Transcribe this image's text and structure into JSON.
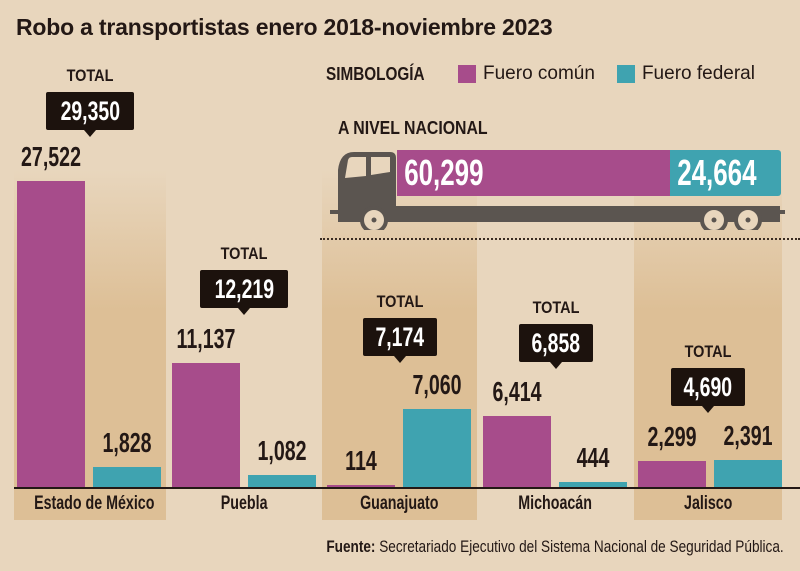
{
  "chart_data": {
    "type": "bar",
    "title": "Robo a transportistas enero 2018-noviembre 2023",
    "categories": [
      "Estado de México",
      "Puebla",
      "Guanajuato",
      "Michoacán",
      "Jalisco"
    ],
    "series": [
      {
        "name": "Fuero común",
        "color": "#a74c8b",
        "values": [
          27522,
          11137,
          114,
          6414,
          2299
        ],
        "labels": [
          "27,522",
          "11,137",
          "114",
          "6,414",
          "2,299"
        ]
      },
      {
        "name": "Fuero federal",
        "color": "#3fa3b0",
        "values": [
          1828,
          1082,
          7060,
          444,
          2391
        ],
        "labels": [
          "1,828",
          "1,082",
          "7,060",
          "444",
          "2,391"
        ]
      }
    ],
    "totals": [
      29350,
      12219,
      7174,
      6858,
      4690
    ],
    "total_labels": [
      "29,350",
      "12,219",
      "7,174",
      "6,858",
      "4,690"
    ],
    "total_caption": "TOTAL",
    "xlabel": "",
    "ylabel": "",
    "ylim": [
      0,
      30000
    ],
    "grid": false,
    "legend": {
      "title": "SIMBOLOGÍA",
      "placement": "top-right",
      "entries": [
        "Fuero común",
        "Fuero federal"
      ]
    },
    "national": {
      "title": "A NIVEL NACIONAL",
      "fuero_comun": 60299,
      "fuero_federal": 24664,
      "fuero_comun_label": "60,299",
      "fuero_federal_label": "24,664"
    }
  },
  "source": {
    "label": "Fuente:",
    "text": "Secretariado Ejecutivo del Sistema Nacional de Seguridad Pública."
  },
  "colors": {
    "comun": "#a74c8b",
    "federal": "#3fa3b0",
    "truck": "#5b5550",
    "dark": "#1c120d"
  }
}
